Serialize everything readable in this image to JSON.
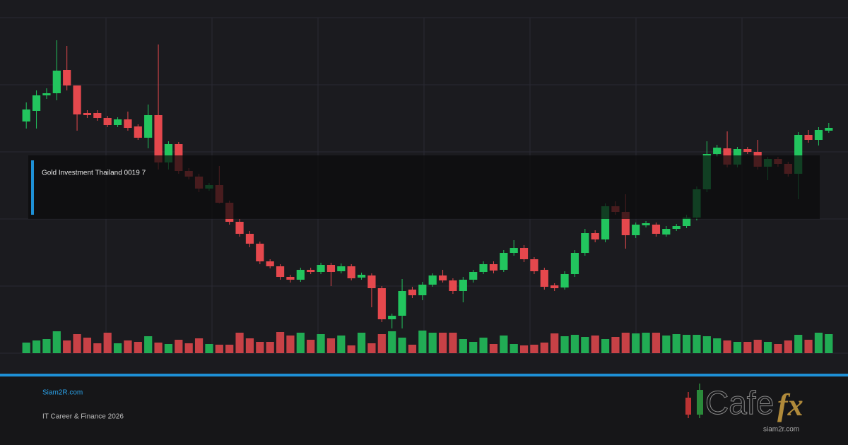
{
  "chart_data": {
    "type": "candlestick",
    "open": [
      328,
      343,
      365,
      368,
      401,
      379,
      340,
      340,
      333,
      323,
      331,
      321,
      305,
      337,
      270,
      296,
      258,
      250,
      233,
      238,
      213,
      186,
      169,
      155,
      130,
      123,
      108,
      104,
      118,
      115,
      125,
      116,
      123,
      107,
      110,
      92,
      48,
      53,
      90,
      82,
      97,
      110,
      103,
      88,
      104,
      115,
      126,
      118,
      142,
      149,
      133,
      118,
      96,
      93,
      112,
      142,
      170,
      161,
      208,
      200,
      167,
      181,
      182,
      168,
      176,
      180,
      192,
      232,
      282,
      290,
      267,
      289,
      285,
      264,
      275,
      268,
      254,
      309,
      302,
      315
    ],
    "high": [
      355,
      372,
      375,
      443,
      435,
      379,
      344,
      344,
      336,
      334,
      342,
      324,
      352,
      437,
      300,
      299,
      262,
      254,
      241,
      265,
      216,
      190,
      173,
      158,
      133,
      126,
      111,
      121,
      121,
      128,
      128,
      127,
      126,
      114,
      113,
      95,
      56,
      105,
      94,
      101,
      113,
      118,
      106,
      108,
      118,
      130,
      130,
      146,
      160,
      153,
      136,
      121,
      99,
      116,
      146,
      176,
      174,
      212,
      215,
      225,
      185,
      187,
      185,
      180,
      183,
      196,
      236,
      300,
      295,
      314,
      292,
      292,
      302,
      278,
      278,
      271,
      313,
      316,
      320,
      326
    ],
    "low": [
      318,
      318,
      360,
      358,
      372,
      315,
      333,
      329,
      320,
      320,
      315,
      302,
      290,
      260,
      260,
      254,
      246,
      228,
      230,
      212,
      182,
      165,
      150,
      126,
      120,
      104,
      100,
      101,
      112,
      112,
      95,
      113,
      103,
      104,
      65,
      44,
      35,
      35,
      78,
      75,
      94,
      100,
      84,
      72,
      100,
      112,
      113,
      115,
      138,
      129,
      112,
      90,
      88,
      90,
      108,
      138,
      157,
      157,
      196,
      148,
      163,
      178,
      165,
      165,
      173,
      177,
      188,
      228,
      278,
      263,
      263,
      282,
      260,
      245,
      264,
      250,
      218,
      298,
      294,
      312
    ],
    "close": [
      345,
      365,
      368,
      400,
      379,
      338,
      337,
      333,
      323,
      331,
      319,
      305,
      337,
      270,
      296,
      258,
      250,
      233,
      238,
      213,
      186,
      169,
      155,
      130,
      123,
      108,
      104,
      118,
      115,
      125,
      115,
      123,
      106,
      111,
      92,
      48,
      53,
      88,
      82,
      97,
      110,
      103,
      88,
      104,
      115,
      126,
      117,
      142,
      149,
      133,
      116,
      94,
      92,
      112,
      142,
      170,
      161,
      208,
      200,
      167,
      182,
      184,
      169,
      176,
      180,
      192,
      232,
      282,
      291,
      267,
      289,
      285,
      264,
      275,
      268,
      254,
      309,
      302,
      316,
      319
    ],
    "volume": [
      15,
      18,
      20,
      31,
      18,
      27,
      22,
      14,
      29,
      14,
      18,
      16,
      24,
      15,
      13,
      19,
      14,
      21,
      13,
      12,
      12,
      29,
      21,
      16,
      16,
      30,
      25,
      29,
      19,
      27,
      21,
      25,
      11,
      29,
      14,
      27,
      31,
      22,
      12,
      32,
      29,
      29,
      29,
      20,
      16,
      22,
      13,
      25,
      13,
      11,
      12,
      15,
      28,
      24,
      26,
      23,
      25,
      20,
      23,
      29,
      28,
      29,
      29,
      25,
      27,
      26,
      26,
      24,
      21,
      18,
      16,
      16,
      19,
      16,
      13,
      18,
      26,
      19,
      29,
      27
    ],
    "up_color": "#22c55e",
    "down_color": "#e5484d",
    "ylim": [
      0,
      475
    ],
    "yticks": [
      0,
      95,
      190,
      285,
      380,
      475
    ],
    "grid": true,
    "annotation": "Gold Investment Thailand 0019 7"
  },
  "footer": {
    "site": "Siam2R.com",
    "caption": "IT Career & Finance 2026",
    "logo_left": "Cafe",
    "logo_right": "fx",
    "logo_sub": "siam2r.com"
  }
}
